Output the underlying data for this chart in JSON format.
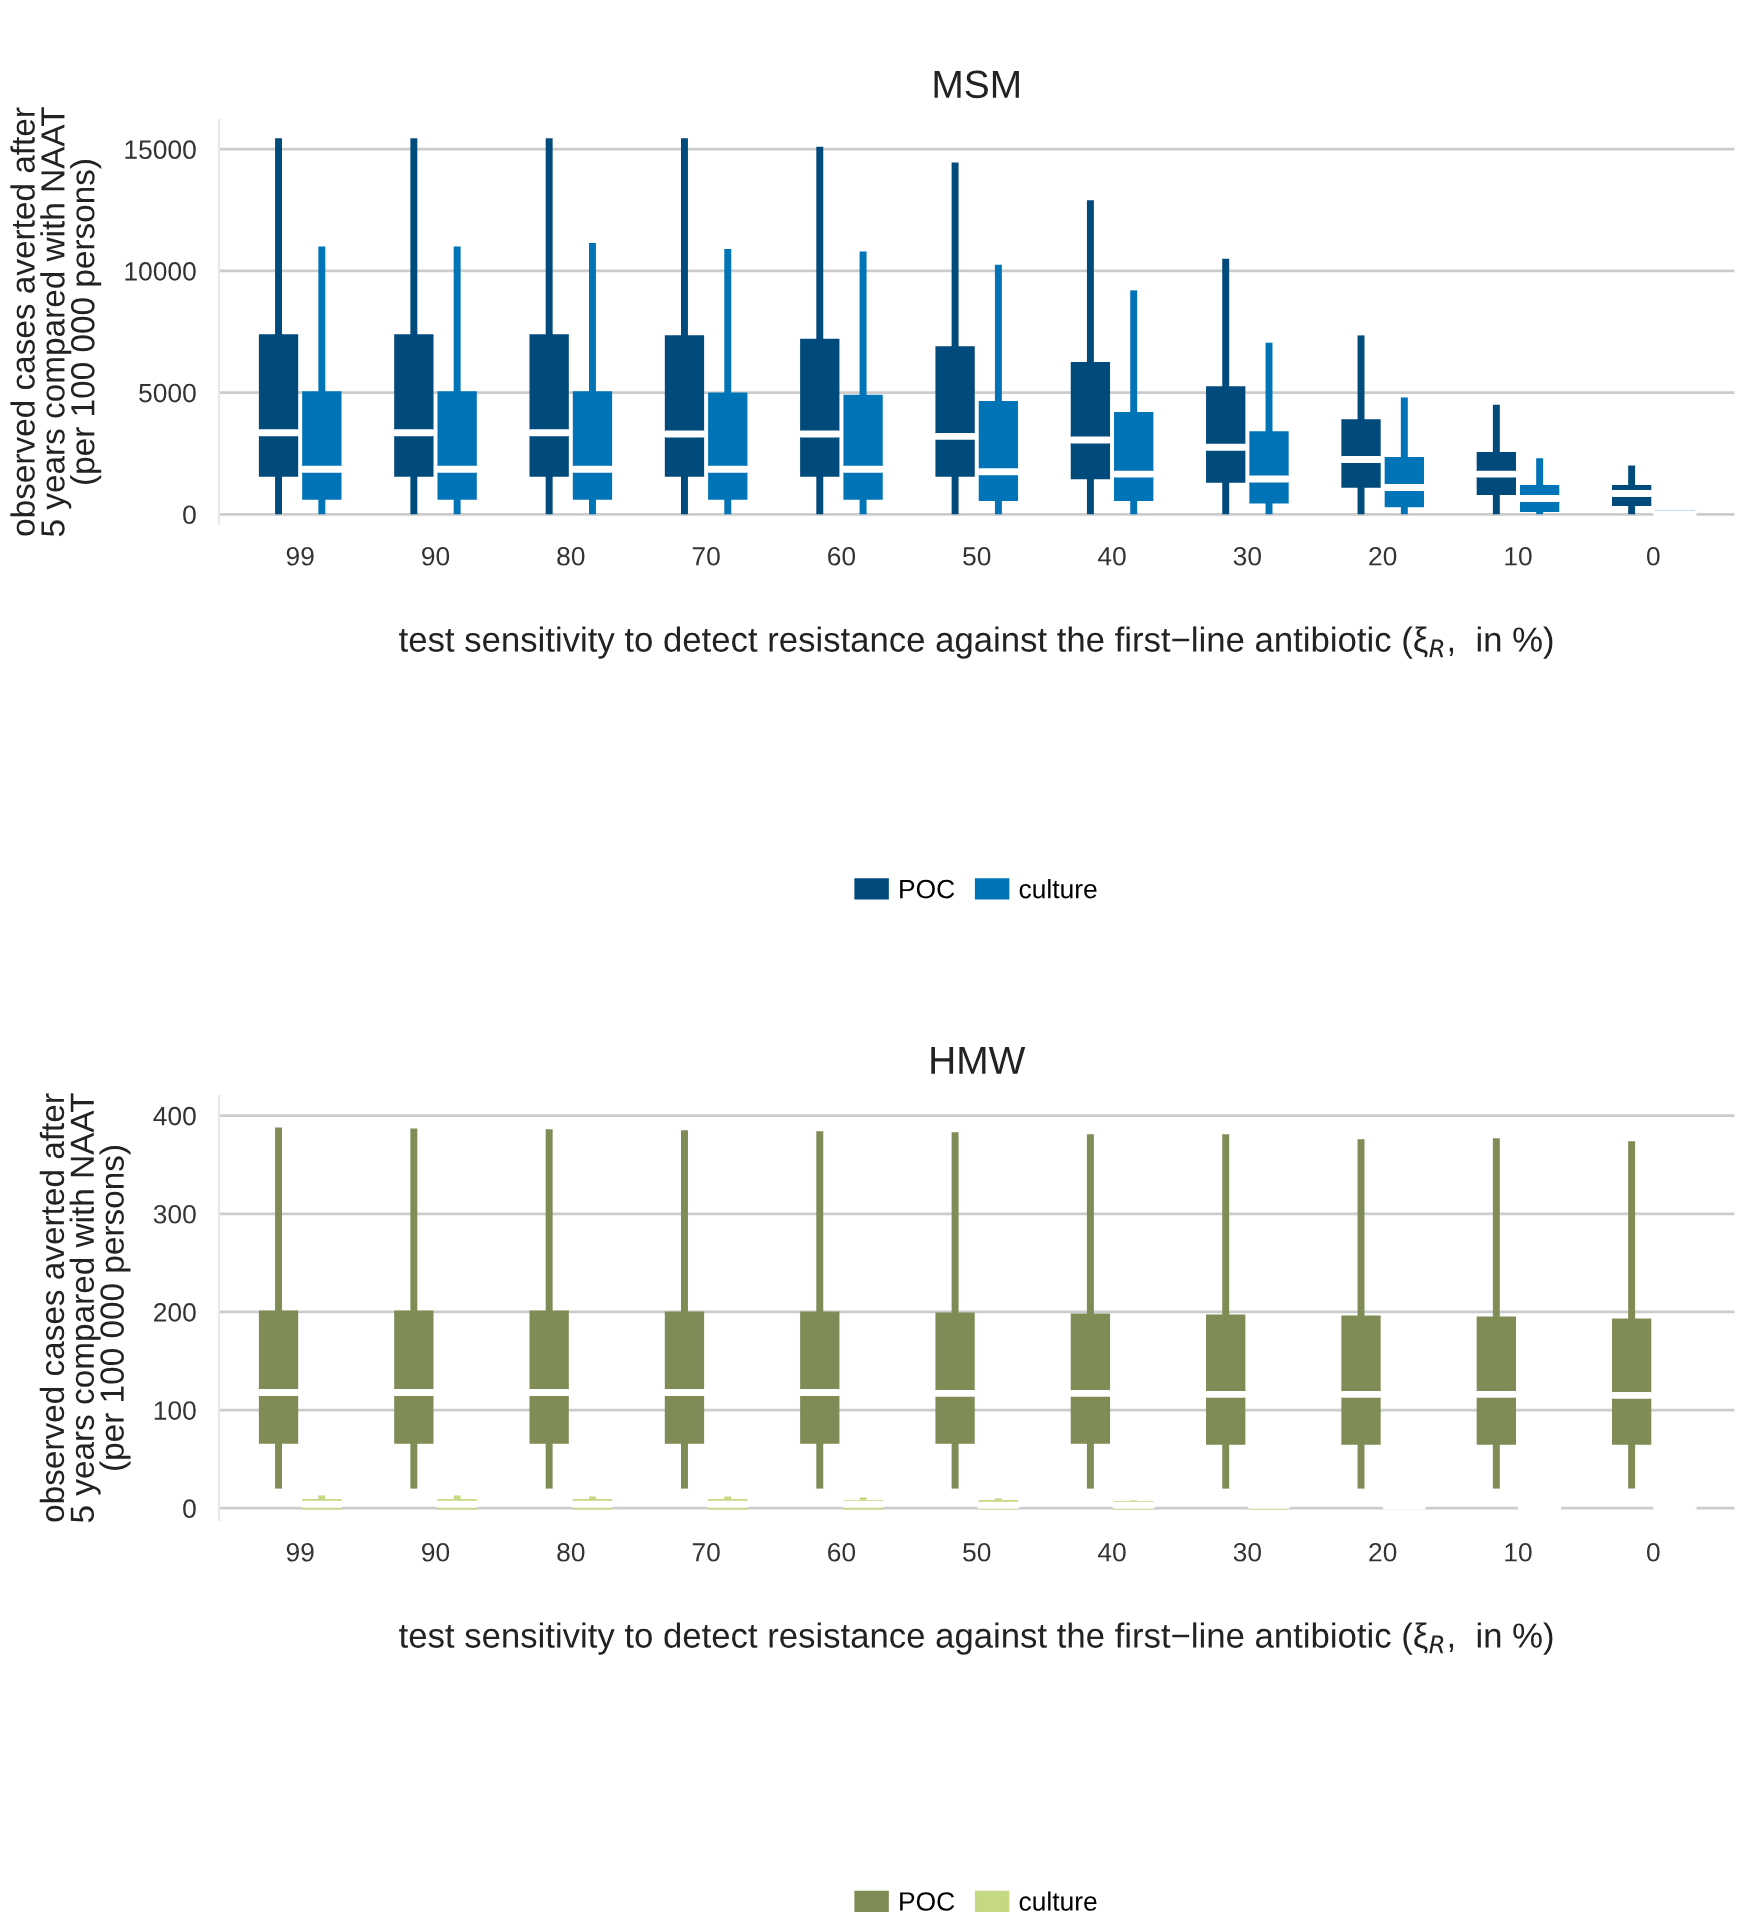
{
  "chart_data": [
    {
      "type": "box",
      "title": "MSM",
      "xlabel": "test sensitivity to detect resistance against the first−line antibiotic (ξ$_{R}$,  in %)",
      "ylabel": "observed cases averted after\n5 years compared with NAAT\n(per 100 000 persons)",
      "categories": [
        "99",
        "90",
        "80",
        "70",
        "60",
        "50",
        "40",
        "30",
        "20",
        "10",
        "0"
      ],
      "ylim": [
        -400,
        16200
      ],
      "yticks": [
        0,
        5000,
        10000,
        15000
      ],
      "grid": "y",
      "legend": "bottom",
      "series": [
        {
          "name": "POC",
          "color": "#004a7c",
          "boxes": [
            {
              "low": 0,
              "q1": 1600,
              "median": 3350,
              "q3": 7340,
              "high": 15450
            },
            {
              "low": 0,
              "q1": 1600,
              "median": 3350,
              "q3": 7340,
              "high": 15450
            },
            {
              "low": 0,
              "q1": 1600,
              "median": 3350,
              "q3": 7340,
              "high": 15450
            },
            {
              "low": 0,
              "q1": 1600,
              "median": 3300,
              "q3": 7300,
              "high": 15450
            },
            {
              "low": 0,
              "q1": 1600,
              "median": 3300,
              "q3": 7150,
              "high": 15100
            },
            {
              "low": 0,
              "q1": 1600,
              "median": 3200,
              "q3": 6850,
              "high": 14450
            },
            {
              "low": 0,
              "q1": 1500,
              "median": 3050,
              "q3": 6200,
              "high": 12900
            },
            {
              "low": 0,
              "q1": 1350,
              "median": 2750,
              "q3": 5200,
              "high": 10500
            },
            {
              "low": 0,
              "q1": 1150,
              "median": 2250,
              "q3": 3850,
              "high": 7350
            },
            {
              "low": 0,
              "q1": 850,
              "median": 1650,
              "q3": 2500,
              "high": 4500
            },
            {
              "low": 0,
              "q1": 400,
              "median": 850,
              "q3": 1150,
              "high": 2000
            }
          ]
        },
        {
          "name": "culture",
          "color": "#0074b7",
          "boxes": [
            {
              "low": 0,
              "q1": 650,
              "median": 1850,
              "q3": 5000,
              "high": 11000
            },
            {
              "low": 0,
              "q1": 650,
              "median": 1850,
              "q3": 5000,
              "high": 11000
            },
            {
              "low": 0,
              "q1": 650,
              "median": 1850,
              "q3": 5000,
              "high": 11150
            },
            {
              "low": 0,
              "q1": 650,
              "median": 1850,
              "q3": 4950,
              "high": 10900
            },
            {
              "low": 0,
              "q1": 650,
              "median": 1850,
              "q3": 4850,
              "high": 10800
            },
            {
              "low": 0,
              "q1": 600,
              "median": 1750,
              "q3": 4600,
              "high": 10250
            },
            {
              "low": 0,
              "q1": 600,
              "median": 1650,
              "q3": 4150,
              "high": 9200
            },
            {
              "low": 0,
              "q1": 500,
              "median": 1450,
              "q3": 3350,
              "high": 7050
            },
            {
              "low": 0,
              "q1": 350,
              "median": 1100,
              "q3": 2300,
              "high": 4800
            },
            {
              "low": 0,
              "q1": 150,
              "median": 650,
              "q3": 1150,
              "high": 2300
            },
            {
              "low": 0,
              "q1": 0,
              "median": 20,
              "q3": 120,
              "high": 120
            }
          ]
        }
      ]
    },
    {
      "type": "box",
      "title": "HMW",
      "xlabel": "test sensitivity to detect resistance against the first−line antibiotic (ξ$_{R}$,  in %)",
      "ylabel": "observed cases averted after\n5 years compared with NAAT\n(per 100 000 persons)",
      "categories": [
        "99",
        "90",
        "80",
        "70",
        "60",
        "50",
        "40",
        "30",
        "20",
        "10",
        "0"
      ],
      "ylim": [
        -12,
        420
      ],
      "yticks": [
        0,
        100,
        200,
        300,
        400
      ],
      "grid": "y",
      "legend": "bottom",
      "series": [
        {
          "name": "POC",
          "color": "#7f8c55",
          "boxes": [
            {
              "low": 20,
              "q1": 67,
              "median": 118,
              "q3": 200,
              "high": 388
            },
            {
              "low": 20,
              "q1": 67,
              "median": 118,
              "q3": 200,
              "high": 387
            },
            {
              "low": 20,
              "q1": 67,
              "median": 118,
              "q3": 200,
              "high": 386
            },
            {
              "low": 20,
              "q1": 67,
              "median": 118,
              "q3": 199,
              "high": 385
            },
            {
              "low": 20,
              "q1": 67,
              "median": 118,
              "q3": 199,
              "high": 384
            },
            {
              "low": 20,
              "q1": 67,
              "median": 117,
              "q3": 198,
              "high": 383
            },
            {
              "low": 20,
              "q1": 67,
              "median": 117,
              "q3": 197,
              "high": 381
            },
            {
              "low": 20,
              "q1": 66,
              "median": 116,
              "q3": 196,
              "high": 381
            },
            {
              "low": 20,
              "q1": 66,
              "median": 116,
              "q3": 195,
              "high": 376
            },
            {
              "low": 20,
              "q1": 66,
              "median": 116,
              "q3": 194,
              "high": 377
            },
            {
              "low": 20,
              "q1": 66,
              "median": 115,
              "q3": 192,
              "high": 374
            }
          ]
        },
        {
          "name": "culture",
          "color": "#c5d882",
          "boxes": [
            {
              "low": 0,
              "q1": 0,
              "median": 4,
              "q3": 8,
              "high": 13
            },
            {
              "low": 0,
              "q1": 0,
              "median": 4,
              "q3": 8,
              "high": 13
            },
            {
              "low": 0,
              "q1": 0,
              "median": 4,
              "q3": 8,
              "high": 12
            },
            {
              "low": 0,
              "q1": 0,
              "median": 4,
              "q3": 8,
              "high": 12
            },
            {
              "low": 0,
              "q1": 0,
              "median": 4,
              "q3": 7,
              "high": 11
            },
            {
              "low": 0,
              "q1": 0,
              "median": 3,
              "q3": 7,
              "high": 10
            },
            {
              "low": 0,
              "q1": 0,
              "median": 3,
              "q3": 6,
              "high": 8
            },
            {
              "low": 0,
              "q1": 0,
              "median": 3,
              "q3": 5,
              "high": 6
            },
            {
              "low": 0,
              "q1": 0,
              "median": 2,
              "q3": 4,
              "high": 4
            },
            {
              "low": 0,
              "q1": 0,
              "median": 1,
              "q3": 3,
              "high": 3
            },
            {
              "low": 0,
              "q1": 0,
              "median": 1,
              "q3": 2,
              "high": 2
            }
          ]
        }
      ]
    }
  ]
}
